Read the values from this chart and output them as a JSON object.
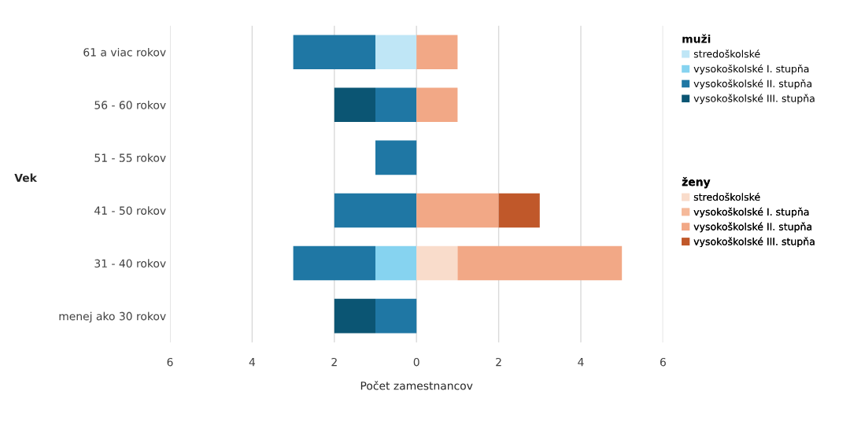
{
  "chart_data": {
    "type": "bar",
    "orientation": "horizontal",
    "stacked": true,
    "ylabel": "Vek",
    "xlabel": "Počet zamestnancov",
    "categories": [
      "61 a viac rokov",
      "56 - 60 rokov",
      "51 - 55 rokov",
      "41 - 50 rokov",
      "31 - 40 rokov",
      "menej ako 30 rokov"
    ],
    "series": [
      {
        "name": "stredoškolské",
        "color": "#bfe6f6",
        "values": [
          -1,
          null,
          null,
          null,
          null,
          null
        ]
      },
      {
        "name": "vysokoškolské I. stupňa",
        "color": "#86d3f0",
        "values": [
          null,
          null,
          null,
          null,
          -1,
          null
        ]
      },
      {
        "name": "vysokoškolské II. stupňa",
        "color": "#1f77a4",
        "values": [
          -2,
          -1,
          -1,
          -2,
          -2,
          -1
        ]
      },
      {
        "name": "vysokoškolské III. stupňa",
        "color": "#0b5573",
        "values": [
          null,
          -1,
          null,
          null,
          null,
          -1
        ]
      },
      {
        "name": "stredoškolské",
        "color": "#f9dccb",
        "values": [
          null,
          null,
          null,
          null,
          1,
          null
        ]
      },
      {
        "name": "vysokoškolské I. stupňa",
        "color": "#f5b99a",
        "values": [
          null,
          null,
          null,
          null,
          null,
          null
        ]
      },
      {
        "name": "vysokoškolské II. stupňa",
        "color": "#f2a886",
        "values": [
          1,
          1,
          null,
          2,
          4,
          null
        ]
      },
      {
        "name": "vysokoškolské III. stupňa",
        "color": "#c0582a",
        "values": [
          null,
          null,
          null,
          1,
          null,
          null
        ]
      }
    ],
    "xlim": [
      -6,
      6
    ],
    "xticks": [
      {
        "value": -6,
        "label": "6"
      },
      {
        "value": -4,
        "label": "4"
      },
      {
        "value": -2,
        "label": "2"
      },
      0,
      2,
      4,
      6
    ],
    "grid": "x",
    "legend": "right",
    "annotations": [
      "muži",
      "ženy"
    ]
  }
}
